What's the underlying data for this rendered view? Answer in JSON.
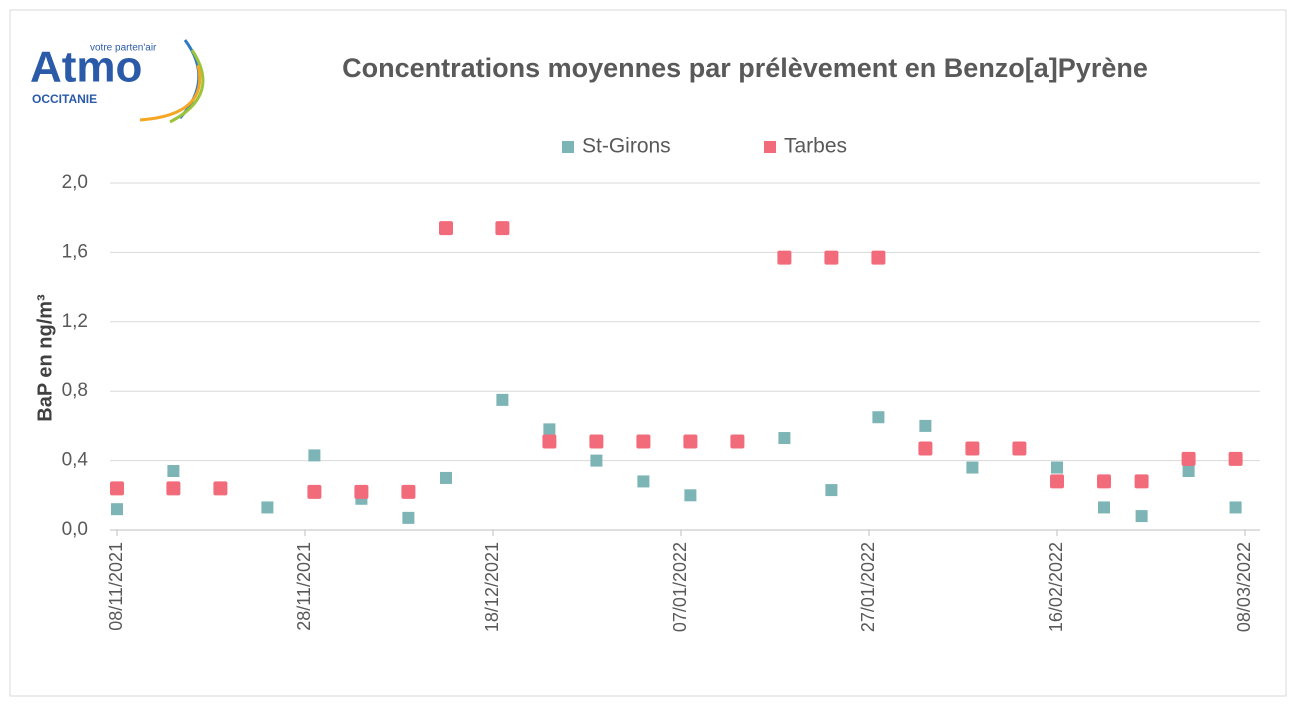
{
  "logo": {
    "brand": "Atmo",
    "tagline": "votre parten'air",
    "region": "OCCITANIE"
  },
  "chart_data": {
    "type": "scatter",
    "title": "Concentrations moyennes par prélèvement en Benzo[a]Pyrène",
    "y_label": "BaP en ng/m³",
    "xlim": [
      "2021-11-08",
      "2022-03-08"
    ],
    "xticks": [
      {
        "value": "2021-11-08",
        "label": "08/11/2021"
      },
      {
        "value": "2021-11-28",
        "label": "28/11/2021"
      },
      {
        "value": "2021-12-18",
        "label": "18/12/2021"
      },
      {
        "value": "2022-01-07",
        "label": "07/01/2022"
      },
      {
        "value": "2022-01-27",
        "label": "27/01/2022"
      },
      {
        "value": "2022-02-16",
        "label": "16/02/2022"
      },
      {
        "value": "2022-03-08",
        "label": "08/03/2022"
      }
    ],
    "ylim": [
      0,
      2
    ],
    "yticks": [
      {
        "value": 0,
        "label": "0,0"
      },
      {
        "value": 0.4,
        "label": "0,4"
      },
      {
        "value": 0.8,
        "label": "0,8"
      },
      {
        "value": 1.2,
        "label": "1,2"
      },
      {
        "value": 1.6,
        "label": "1,6"
      },
      {
        "value": 2,
        "label": "2,0"
      }
    ],
    "grid": true,
    "legend": "top",
    "series": [
      {
        "name": "St-Girons",
        "color": "#7db4b5",
        "x": [
          "2021-11-08",
          "2021-11-14",
          "2021-11-24",
          "2021-11-29",
          "2021-12-04",
          "2021-12-09",
          "2021-12-13",
          "2021-12-19",
          "2021-12-24",
          "2021-12-29",
          "2022-01-03",
          "2022-01-08",
          "2022-01-18",
          "2022-01-23",
          "2022-01-28",
          "2022-02-02",
          "2022-02-07",
          "2022-02-16",
          "2022-02-21",
          "2022-02-25",
          "2022-03-02",
          "2022-03-07"
        ],
        "values": [
          0.12,
          0.34,
          0.13,
          0.43,
          0.18,
          0.07,
          0.3,
          0.75,
          0.58,
          0.4,
          0.28,
          0.2,
          0.53,
          0.23,
          0.65,
          0.6,
          0.36,
          0.36,
          0.13,
          0.08,
          0.34,
          0.13
        ]
      },
      {
        "name": "Tarbes",
        "color": "#f26b7a",
        "x": [
          "2021-11-08",
          "2021-11-14",
          "2021-11-19",
          "2021-11-29",
          "2021-12-04",
          "2021-12-09",
          "2021-12-13",
          "2021-12-19",
          "2021-12-24",
          "2021-12-29",
          "2022-01-03",
          "2022-01-08",
          "2022-01-13",
          "2022-01-18",
          "2022-01-23",
          "2022-01-28",
          "2022-02-02",
          "2022-02-07",
          "2022-02-12",
          "2022-02-16",
          "2022-02-21",
          "2022-02-25",
          "2022-03-02",
          "2022-03-07"
        ],
        "values": [
          0.24,
          0.24,
          0.24,
          0.22,
          0.22,
          0.22,
          1.74,
          1.74,
          0.51,
          0.51,
          0.51,
          0.51,
          0.51,
          1.57,
          1.57,
          1.57,
          0.47,
          0.47,
          0.47,
          0.28,
          0.28,
          0.28,
          0.41,
          0.41
        ]
      }
    ]
  }
}
